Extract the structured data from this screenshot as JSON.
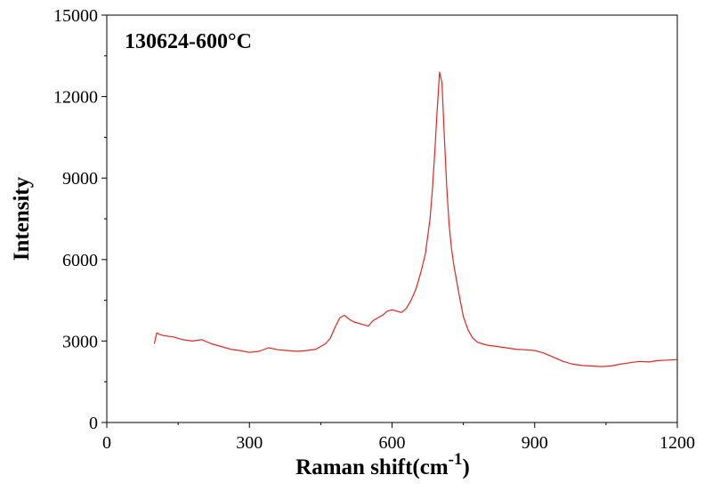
{
  "chart_data": {
    "type": "line",
    "annotation": "130624-600°C",
    "xlabel": "Raman shift(cm",
    "xlabel_sup": "-1",
    "xlabel_close": ")",
    "ylabel": "Intensity",
    "xlim": [
      0,
      1200
    ],
    "ylim": [
      0,
      15000
    ],
    "x_ticks": [
      0,
      300,
      600,
      900,
      1200
    ],
    "y_ticks": [
      0,
      3000,
      6000,
      9000,
      12000,
      15000
    ],
    "x_tick_labels": [
      "0",
      "300",
      "600",
      "900",
      "1200"
    ],
    "y_tick_labels": [
      "0",
      "3000",
      "6000",
      "9000",
      "12000",
      "15000"
    ],
    "grid": false,
    "series": [
      {
        "color": "#e8231f",
        "x": [
          100,
          105,
          110,
          120,
          140,
          160,
          180,
          200,
          220,
          240,
          260,
          280,
          300,
          320,
          340,
          360,
          380,
          400,
          420,
          440,
          450,
          460,
          470,
          480,
          490,
          500,
          510,
          520,
          530,
          540,
          550,
          560,
          570,
          580,
          590,
          600,
          610,
          620,
          630,
          640,
          650,
          660,
          670,
          680,
          685,
          690,
          695,
          700,
          705,
          710,
          715,
          720,
          725,
          730,
          740,
          750,
          760,
          770,
          780,
          800,
          820,
          840,
          860,
          880,
          900,
          920,
          940,
          960,
          980,
          1000,
          1020,
          1040,
          1060,
          1080,
          1100,
          1120,
          1140,
          1160,
          1180,
          1200
        ],
        "y": [
          2900,
          3300,
          3250,
          3200,
          3150,
          3050,
          3000,
          3050,
          2900,
          2800,
          2700,
          2650,
          2580,
          2620,
          2750,
          2680,
          2650,
          2620,
          2650,
          2700,
          2800,
          2900,
          3100,
          3500,
          3850,
          3950,
          3800,
          3700,
          3650,
          3600,
          3550,
          3750,
          3850,
          3950,
          4100,
          4150,
          4100,
          4050,
          4200,
          4500,
          4900,
          5500,
          6200,
          7500,
          8600,
          10000,
          11500,
          12900,
          12500,
          10500,
          8700,
          7300,
          6400,
          5800,
          4800,
          3900,
          3400,
          3100,
          2950,
          2850,
          2800,
          2750,
          2700,
          2680,
          2650,
          2550,
          2400,
          2250,
          2150,
          2100,
          2080,
          2060,
          2080,
          2150,
          2200,
          2250,
          2230,
          2280,
          2300,
          2320
        ]
      }
    ]
  }
}
